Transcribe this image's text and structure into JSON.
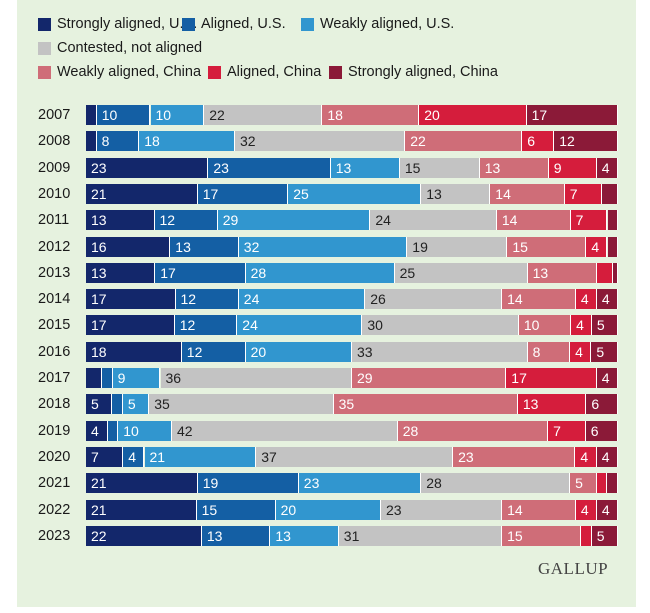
{
  "chart_data": {
    "type": "bar",
    "orientation": "horizontal-stacked-100",
    "title": "",
    "legend_position": "top",
    "series": [
      {
        "name": "Strongly aligned, U.S.",
        "color": "#13276b"
      },
      {
        "name": "Aligned, U.S.",
        "color": "#145fa4"
      },
      {
        "name": "Weakly aligned, U.S.",
        "color": "#3196cf"
      },
      {
        "name": "Contested, not aligned",
        "color": "#c3c3c3"
      },
      {
        "name": "Weakly aligned, China",
        "color": "#cf6d78"
      },
      {
        "name": "Aligned, China",
        "color": "#d51d3c"
      },
      {
        "name": "Strongly aligned, China",
        "color": "#8b1a38"
      }
    ],
    "categories": [
      "2007",
      "2008",
      "2009",
      "2010",
      "2011",
      "2012",
      "2013",
      "2014",
      "2015",
      "2016",
      "2017",
      "2018",
      "2019",
      "2020",
      "2021",
      "2022",
      "2023"
    ],
    "values": [
      [
        2,
        10,
        10,
        22,
        18,
        20,
        17
      ],
      [
        2,
        8,
        18,
        32,
        22,
        6,
        12
      ],
      [
        23,
        23,
        13,
        15,
        13,
        9,
        4
      ],
      [
        21,
        17,
        25,
        13,
        14,
        7,
        3
      ],
      [
        13,
        12,
        29,
        24,
        14,
        7,
        2
      ],
      [
        16,
        13,
        32,
        19,
        15,
        4,
        2
      ],
      [
        13,
        17,
        28,
        25,
        13,
        3,
        1
      ],
      [
        17,
        12,
        24,
        26,
        14,
        4,
        4
      ],
      [
        17,
        12,
        24,
        30,
        10,
        4,
        5
      ],
      [
        18,
        12,
        20,
        33,
        8,
        4,
        5
      ],
      [
        3,
        2,
        9,
        36,
        29,
        17,
        4
      ],
      [
        5,
        2,
        5,
        35,
        35,
        13,
        6
      ],
      [
        4,
        2,
        10,
        42,
        28,
        7,
        6
      ],
      [
        7,
        4,
        21,
        37,
        23,
        4,
        4
      ],
      [
        21,
        19,
        23,
        28,
        5,
        2,
        2
      ],
      [
        21,
        15,
        20,
        23,
        14,
        4,
        4
      ],
      [
        22,
        13,
        13,
        31,
        15,
        2,
        5
      ]
    ],
    "labels": [
      [
        "",
        "10",
        "10",
        "22",
        "18",
        "20",
        "17"
      ],
      [
        "",
        "8",
        "18",
        "32",
        "22",
        "6",
        "12"
      ],
      [
        "23",
        "23",
        "13",
        "15",
        "13",
        "9",
        "4"
      ],
      [
        "21",
        "17",
        "25",
        "13",
        "14",
        "7",
        ""
      ],
      [
        "13",
        "12",
        "29",
        "24",
        "14",
        "7",
        ""
      ],
      [
        "16",
        "13",
        "32",
        "19",
        "15",
        "4",
        ""
      ],
      [
        "13",
        "17",
        "28",
        "25",
        "13",
        "",
        ""
      ],
      [
        "17",
        "12",
        "24",
        "26",
        "14",
        "4",
        "4"
      ],
      [
        "17",
        "12",
        "24",
        "30",
        "10",
        "4",
        "5"
      ],
      [
        "18",
        "12",
        "20",
        "33",
        "8",
        "4",
        "5"
      ],
      [
        "",
        "",
        "9",
        "36",
        "29",
        "17",
        "4"
      ],
      [
        "5",
        "",
        "5",
        "35",
        "35",
        "13",
        "6"
      ],
      [
        "4",
        "",
        "10",
        "42",
        "28",
        "7",
        "6"
      ],
      [
        "7",
        "4",
        "21",
        "37",
        "23",
        "4",
        "4"
      ],
      [
        "21",
        "19",
        "23",
        "28",
        "5",
        "",
        ""
      ],
      [
        "21",
        "15",
        "20",
        "23",
        "14",
        "4",
        "4"
      ],
      [
        "22",
        "13",
        "13",
        "31",
        "15",
        "",
        "5"
      ]
    ],
    "xlim": [
      0,
      100
    ]
  },
  "branding": {
    "logo": "GALLUP"
  }
}
